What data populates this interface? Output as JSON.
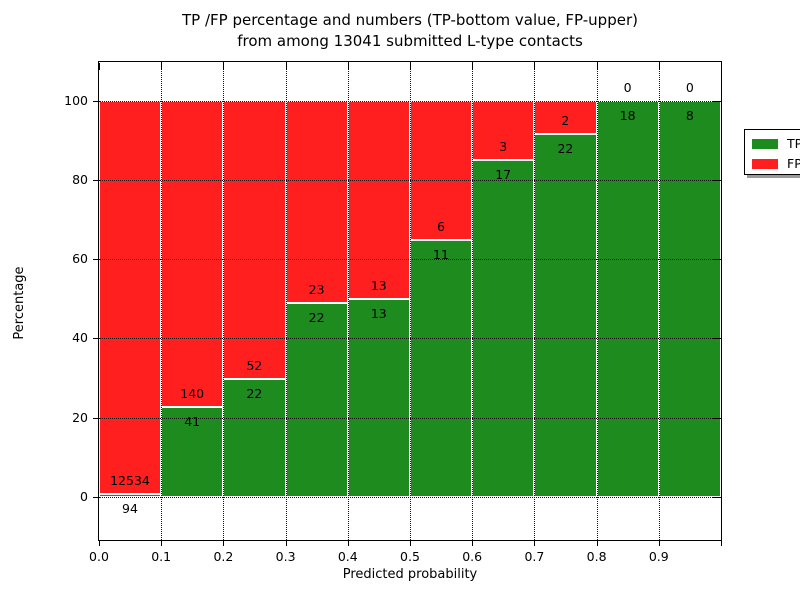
{
  "title": {
    "line1": "TP /FP percentage and numbers (TP-bottom value, FP-upper)",
    "line2": "from among 13041 submitted L-type contacts"
  },
  "axes": {
    "x_label": "Predicted probability",
    "y_label": "Percentage",
    "x_tick_labels": [
      "0.0",
      "0.1",
      "0.2",
      "0.3",
      "0.4",
      "0.5",
      "0.6",
      "0.7",
      "0.8",
      "0.9"
    ],
    "y_tick_labels": [
      "0",
      "20",
      "40",
      "60",
      "80",
      "100"
    ],
    "y_tick_values": [
      0,
      20,
      40,
      60,
      80,
      100
    ]
  },
  "legend": {
    "items": [
      {
        "label": "TP",
        "color": "#1e8b1e"
      },
      {
        "label": "FP",
        "color": "#ff1f1f"
      }
    ]
  },
  "colors": {
    "tp": "#1e8b1e",
    "fp": "#ff1f1f",
    "gridline": "#111111",
    "frame": "#000000"
  },
  "chart_data": {
    "type": "bar",
    "stacked": true,
    "normalized_to": 100,
    "title": "TP /FP percentage and numbers (TP-bottom value, FP-upper) from among 13041 submitted L-type contacts",
    "xlabel": "Predicted probability",
    "ylabel": "Percentage",
    "categories": [
      "0.0-0.1",
      "0.1-0.2",
      "0.2-0.3",
      "0.3-0.4",
      "0.4-0.5",
      "0.5-0.6",
      "0.6-0.7",
      "0.7-0.8",
      "0.8-0.9",
      "0.9-1.0"
    ],
    "series": [
      {
        "name": "TP",
        "color": "#1e8b1e",
        "values": [
          94,
          41,
          22,
          22,
          13,
          11,
          17,
          22,
          18,
          8
        ]
      },
      {
        "name": "FP",
        "color": "#ff1f1f",
        "values": [
          12534,
          140,
          52,
          23,
          13,
          6,
          3,
          2,
          0,
          0
        ]
      }
    ],
    "tp_percent_boundaries": [
      0.74,
      22.65,
      29.73,
      48.89,
      50.0,
      64.71,
      85.0,
      91.67,
      100.0,
      100.0
    ],
    "total_contacts": 13041,
    "xlim": [
      0.0,
      1.0
    ],
    "ylim": [
      -11,
      110
    ],
    "grid": true,
    "legend_position": "upper right",
    "note": "numbers printed on bars: TP count below boundary, FP count above boundary; FP label of last bar hidden behind legend"
  }
}
